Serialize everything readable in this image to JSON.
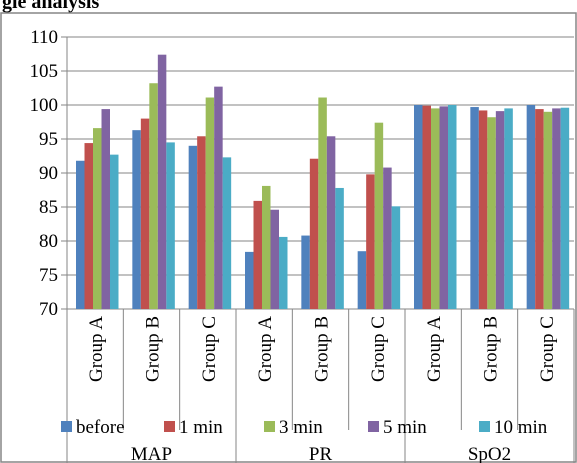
{
  "caption": "gle analysis",
  "chart_data": {
    "type": "bar",
    "title": "",
    "xlabel": "",
    "ylabel": "",
    "ylim": [
      70,
      110
    ],
    "yticks": [
      70,
      75,
      80,
      85,
      90,
      95,
      100,
      105,
      110
    ],
    "grid": true,
    "legend_position": "bottom",
    "groups": [
      "MAP",
      "PR",
      "SpO2"
    ],
    "categories": [
      "Group A",
      "Group B",
      "Group C",
      "Group A",
      "Group B",
      "Group C",
      "Group A",
      "Group B",
      "Group C"
    ],
    "series": [
      {
        "name": "before",
        "color": "#4f81bd",
        "values": [
          91.8,
          96.3,
          94.0,
          78.4,
          80.8,
          78.5,
          100.0,
          99.7,
          100.0
        ]
      },
      {
        "name": "1 min",
        "color": "#c0504d",
        "values": [
          94.4,
          98.0,
          95.4,
          85.9,
          92.1,
          89.8,
          99.9,
          99.2,
          99.4
        ]
      },
      {
        "name": "3 min",
        "color": "#9bbb59",
        "values": [
          96.6,
          103.2,
          101.1,
          88.1,
          101.1,
          97.4,
          99.5,
          98.2,
          99.0
        ]
      },
      {
        "name": "5 min",
        "color": "#8064a2",
        "values": [
          99.4,
          107.4,
          102.7,
          84.6,
          95.4,
          90.8,
          99.8,
          99.1,
          99.5
        ]
      },
      {
        "name": "10 min",
        "color": "#4bacc6",
        "values": [
          92.7,
          94.5,
          92.3,
          80.6,
          87.8,
          85.1,
          100.0,
          99.5,
          99.6
        ]
      }
    ]
  }
}
